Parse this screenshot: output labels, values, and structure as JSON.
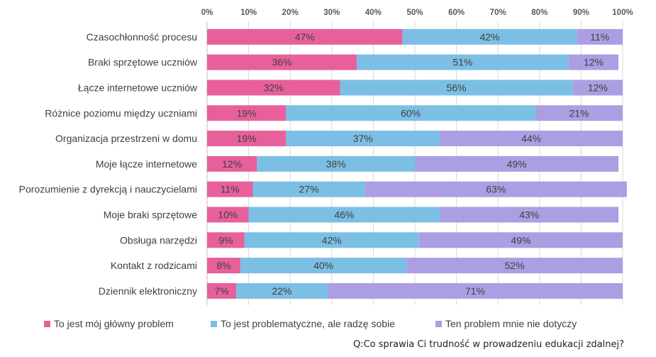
{
  "chart_data": {
    "type": "bar",
    "orientation": "horizontal",
    "stacked": "percent",
    "title": "",
    "xlabel": "",
    "ylabel": "",
    "xlim": [
      0,
      100
    ],
    "grid": true,
    "legend_position": "bottom",
    "tick_labels": [
      "0%",
      "10%",
      "20%",
      "30%",
      "40%",
      "50%",
      "60%",
      "70%",
      "80%",
      "90%",
      "100%"
    ],
    "categories": [
      "Czasochłonność procesu",
      "Braki sprzętowe uczniów",
      "Łącze internetowe uczniów",
      "Różnice poziomu między uczniami",
      "Organizacja przestrzeni w domu",
      "Moje łącze internetowe",
      "Porozumienie z dyrekcją i nauczycielami",
      "Moje braki sprzętowe",
      "Obsługa narzędzi",
      "Kontakt z rodzicami",
      "Dziennik elektroniczny"
    ],
    "series": [
      {
        "name": "To jest mój główny problem",
        "color": "#e8609b",
        "values": [
          47,
          36,
          32,
          19,
          19,
          12,
          11,
          10,
          9,
          8,
          7
        ]
      },
      {
        "name": "To jest problematyczne, ale radzę sobie",
        "color": "#7cbfe4",
        "values": [
          42,
          51,
          56,
          60,
          37,
          38,
          27,
          46,
          42,
          40,
          22
        ]
      },
      {
        "name": "Ten problem mnie nie dotyczy",
        "color": "#ac9ee2",
        "values": [
          11,
          12,
          12,
          21,
          44,
          49,
          63,
          43,
          49,
          52,
          71
        ]
      }
    ]
  },
  "footer": {
    "source_note": "Q:Co sprawia Ci trudność w prowadzeniu edukacji zdalnej?"
  }
}
